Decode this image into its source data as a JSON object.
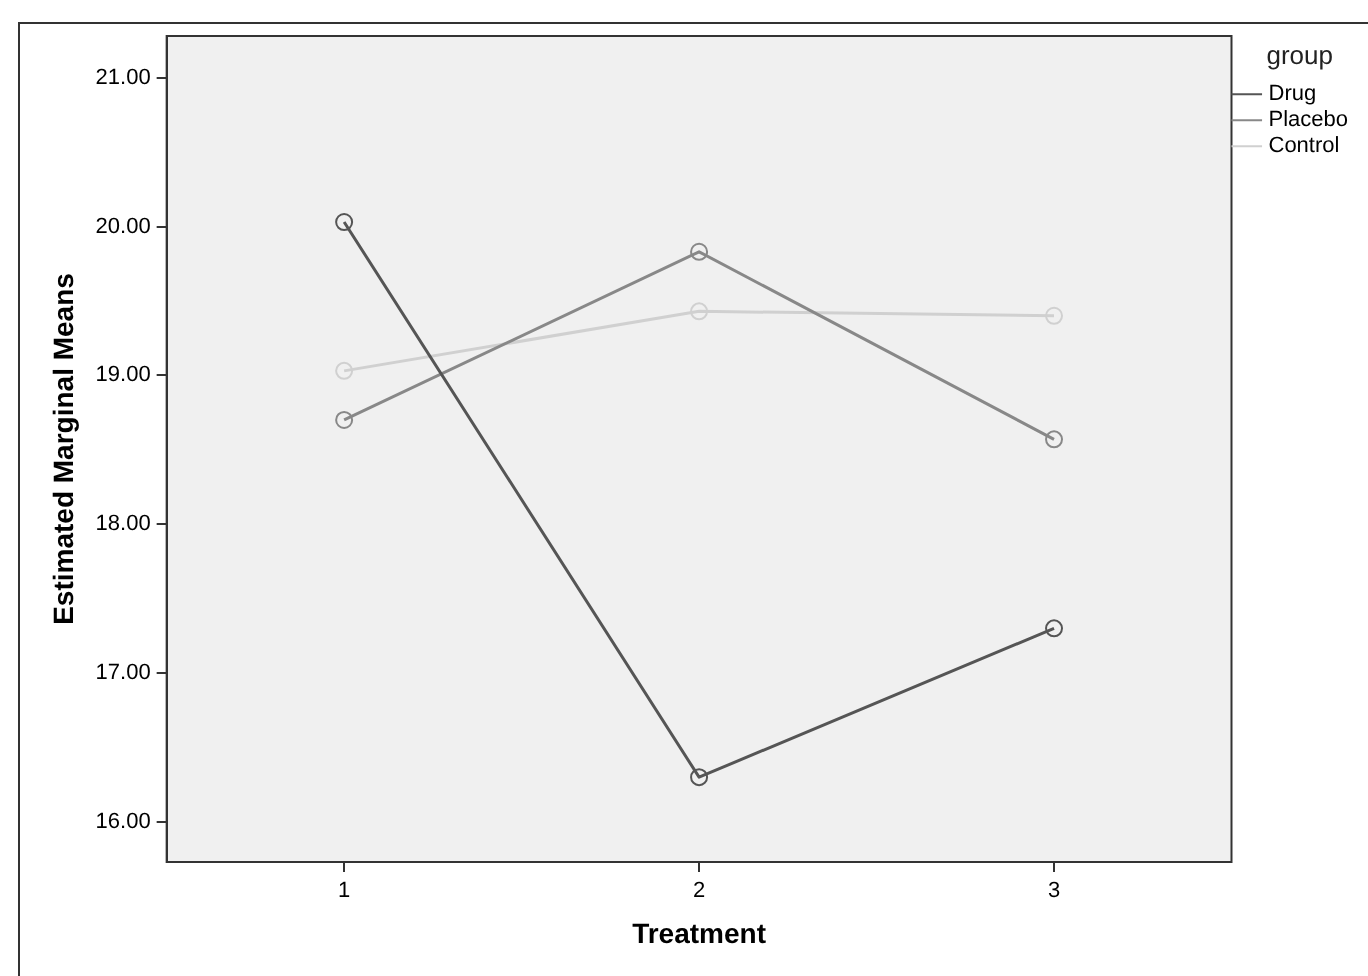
{
  "chart_data": {
    "type": "line",
    "xlabel": "Treatment",
    "ylabel": "Estimated Marginal Means",
    "legend_title": "group",
    "categories": [
      "1",
      "2",
      "3"
    ],
    "series": [
      {
        "name": "Drug",
        "color": "#555555",
        "values": [
          20.03,
          16.3,
          17.3
        ]
      },
      {
        "name": "Placebo",
        "color": "#888888",
        "values": [
          18.7,
          19.83,
          18.57
        ]
      },
      {
        "name": "Control",
        "color": "#d0d0d0",
        "values": [
          19.03,
          19.43,
          19.4
        ]
      }
    ],
    "ylim": [
      15.73,
      21.28
    ],
    "yticks": [
      {
        "value": 16,
        "label": "16.00"
      },
      {
        "value": 17,
        "label": "17.00"
      },
      {
        "value": 18,
        "label": "18.00"
      },
      {
        "value": 19,
        "label": "19.00"
      },
      {
        "value": 20,
        "label": "20.00"
      },
      {
        "value": 21,
        "label": "21.00"
      }
    ],
    "grid": false,
    "legend": "top right",
    "marker": "circle",
    "line_style": "solid"
  }
}
